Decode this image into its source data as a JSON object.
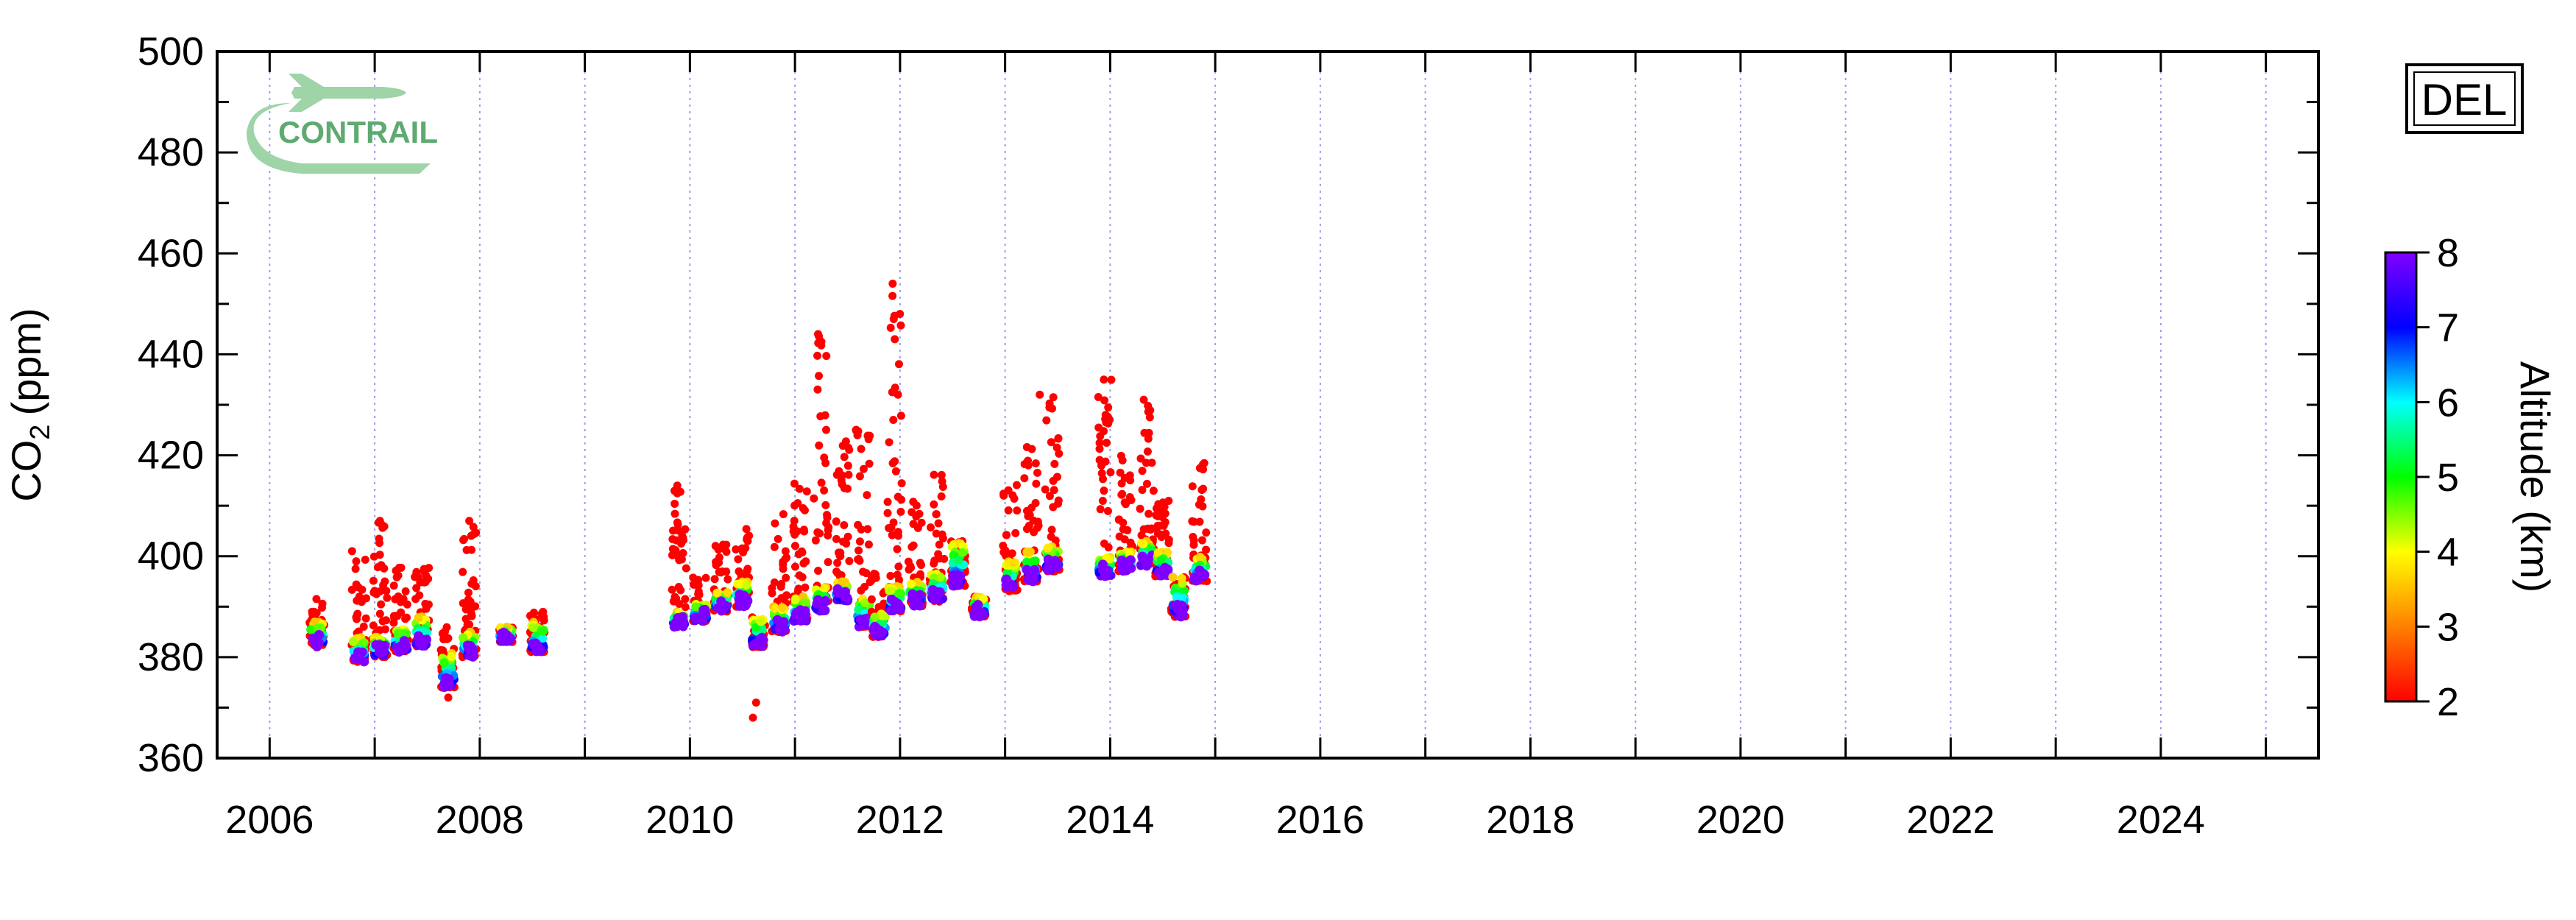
{
  "chart_data": {
    "type": "scatter",
    "station": "DEL",
    "logo_text": "CONTRAIL",
    "logo_color": "#9fd3a8",
    "ylabel_prefix": "CO",
    "ylabel_subscript": "2",
    "ylabel_unit": "(ppm)",
    "xlabel": "",
    "xlim": [
      2005.5,
      2025.5
    ],
    "ylim": [
      360,
      500
    ],
    "x_tick_labels": [
      "2006",
      "2008",
      "2010",
      "2012",
      "2014",
      "2016",
      "2018",
      "2020",
      "2022",
      "2024"
    ],
    "y_tick_labels": [
      "360",
      "380",
      "400",
      "420",
      "440",
      "460",
      "480",
      "500"
    ],
    "grid": "dotted vertical lines at each year",
    "grid_color": "#9c9cf0",
    "colorbar": {
      "label": "Altitude (km)",
      "range": [
        2,
        8
      ],
      "tick_labels": [
        "2",
        "3",
        "4",
        "5",
        "6",
        "7",
        "8"
      ],
      "colors": [
        "#ff0000",
        "#ff8000",
        "#ffff00",
        "#00ff00",
        "#00ffff",
        "#0000ff",
        "#8000ff"
      ]
    },
    "clusters": [
      {
        "x": 2006.45,
        "y_low": 382,
        "y_high": 387,
        "y_red_max": 392
      },
      {
        "x": 2006.85,
        "y_low": 379,
        "y_high": 384,
        "y_red_max": 402
      },
      {
        "x": 2007.05,
        "y_low": 380,
        "y_high": 384,
        "y_red_max": 407
      },
      {
        "x": 2007.25,
        "y_low": 381,
        "y_high": 386,
        "y_red_max": 399
      },
      {
        "x": 2007.45,
        "y_low": 382,
        "y_high": 388,
        "y_red_max": 398
      },
      {
        "x": 2007.7,
        "y_low": 374,
        "y_high": 381,
        "y_red_max": 387
      },
      {
        "x": 2007.9,
        "y_low": 380,
        "y_high": 385,
        "y_red_max": 406
      },
      {
        "x": 2008.25,
        "y_low": 383,
        "y_high": 386,
        "y_red_max": 386
      },
      {
        "x": 2008.55,
        "y_low": 381,
        "y_high": 387,
        "y_red_max": 390
      },
      {
        "x": 2009.9,
        "y_low": 386,
        "y_high": 389,
        "y_red_max": 413
      },
      {
        "x": 2010.1,
        "y_low": 387,
        "y_high": 391,
        "y_red_max": 396
      },
      {
        "x": 2010.3,
        "y_low": 389,
        "y_high": 393,
        "y_red_max": 403
      },
      {
        "x": 2010.5,
        "y_low": 390,
        "y_high": 395,
        "y_red_max": 406
      },
      {
        "x": 2010.65,
        "y_low": 382,
        "y_high": 388,
        "y_red_max": 388
      },
      {
        "x": 2010.85,
        "y_low": 385,
        "y_high": 390,
        "y_red_max": 409
      },
      {
        "x": 2011.05,
        "y_low": 387,
        "y_high": 392,
        "y_red_max": 415
      },
      {
        "x": 2011.25,
        "y_low": 389,
        "y_high": 394,
        "y_red_max": 444
      },
      {
        "x": 2011.45,
        "y_low": 391,
        "y_high": 395,
        "y_red_max": 424
      },
      {
        "x": 2011.65,
        "y_low": 386,
        "y_high": 392,
        "y_red_max": 427
      },
      {
        "x": 2011.8,
        "y_low": 384,
        "y_high": 389,
        "y_red_max": 397
      },
      {
        "x": 2011.95,
        "y_low": 389,
        "y_high": 394,
        "y_red_max": 454
      },
      {
        "x": 2012.15,
        "y_low": 390,
        "y_high": 395,
        "y_red_max": 412
      },
      {
        "x": 2012.35,
        "y_low": 391,
        "y_high": 397,
        "y_red_max": 418
      },
      {
        "x": 2012.55,
        "y_low": 394,
        "y_high": 403,
        "y_red_max": 403
      },
      {
        "x": 2012.75,
        "y_low": 388,
        "y_high": 392,
        "y_red_max": 392
      },
      {
        "x": 2013.05,
        "y_low": 393,
        "y_high": 399,
        "y_red_max": 415
      },
      {
        "x": 2013.25,
        "y_low": 395,
        "y_high": 401,
        "y_red_max": 422
      },
      {
        "x": 2013.45,
        "y_low": 397,
        "y_high": 402,
        "y_red_max": 432
      },
      {
        "x": 2013.95,
        "y_low": 396,
        "y_high": 400,
        "y_red_max": 435
      },
      {
        "x": 2014.15,
        "y_low": 397,
        "y_high": 401,
        "y_red_max": 422
      },
      {
        "x": 2014.35,
        "y_low": 398,
        "y_high": 403,
        "y_red_max": 431
      },
      {
        "x": 2014.5,
        "y_low": 396,
        "y_high": 401,
        "y_red_max": 412
      },
      {
        "x": 2014.65,
        "y_low": 388,
        "y_high": 396,
        "y_red_max": 396
      },
      {
        "x": 2014.85,
        "y_low": 395,
        "y_high": 400,
        "y_red_max": 420
      }
    ],
    "outliers": [
      {
        "x": 2011.22,
        "y": 444
      },
      {
        "x": 2011.93,
        "y": 454
      },
      {
        "x": 2011.94,
        "y": 447
      },
      {
        "x": 2011.95,
        "y": 443
      },
      {
        "x": 2011.98,
        "y": 432
      },
      {
        "x": 2013.33,
        "y": 432
      },
      {
        "x": 2013.94,
        "y": 435
      },
      {
        "x": 2014.32,
        "y": 431
      },
      {
        "x": 2010.6,
        "y": 368
      },
      {
        "x": 2010.63,
        "y": 371
      },
      {
        "x": 2007.7,
        "y": 372
      },
      {
        "x": 2007.05,
        "y": 407
      },
      {
        "x": 2007.9,
        "y": 407
      },
      {
        "x": 2009.88,
        "y": 414
      }
    ]
  }
}
